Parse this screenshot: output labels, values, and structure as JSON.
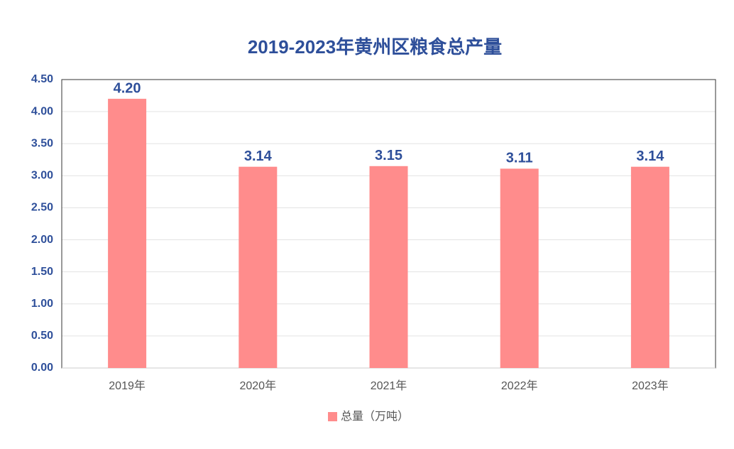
{
  "chart_data": {
    "type": "bar",
    "title": "2019-2023年黄州区粮食总产量",
    "categories": [
      "2019年",
      "2020年",
      "2021年",
      "2022年",
      "2023年"
    ],
    "series": [
      {
        "name": "总量（万吨）",
        "color": "#ff8c8c",
        "values": [
          4.2,
          3.14,
          3.15,
          3.11,
          3.14
        ],
        "value_labels": [
          "4.20",
          "3.14",
          "3.15",
          "3.11",
          "3.14"
        ]
      }
    ],
    "ylim": [
      0,
      4.5
    ],
    "yticks": [
      {
        "value": 0,
        "label": "0.00"
      },
      {
        "value": 0.5,
        "label": "0.50"
      },
      {
        "value": 1,
        "label": "1.00"
      },
      {
        "value": 1.5,
        "label": "1.50"
      },
      {
        "value": 2,
        "label": "2.00"
      },
      {
        "value": 2.5,
        "label": "2.50"
      },
      {
        "value": 3,
        "label": "3.00"
      },
      {
        "value": 3.5,
        "label": "3.50"
      },
      {
        "value": 4,
        "label": "4.00"
      },
      {
        "value": 4.5,
        "label": "4.50"
      }
    ],
    "grid": true,
    "legend": "bottom"
  }
}
